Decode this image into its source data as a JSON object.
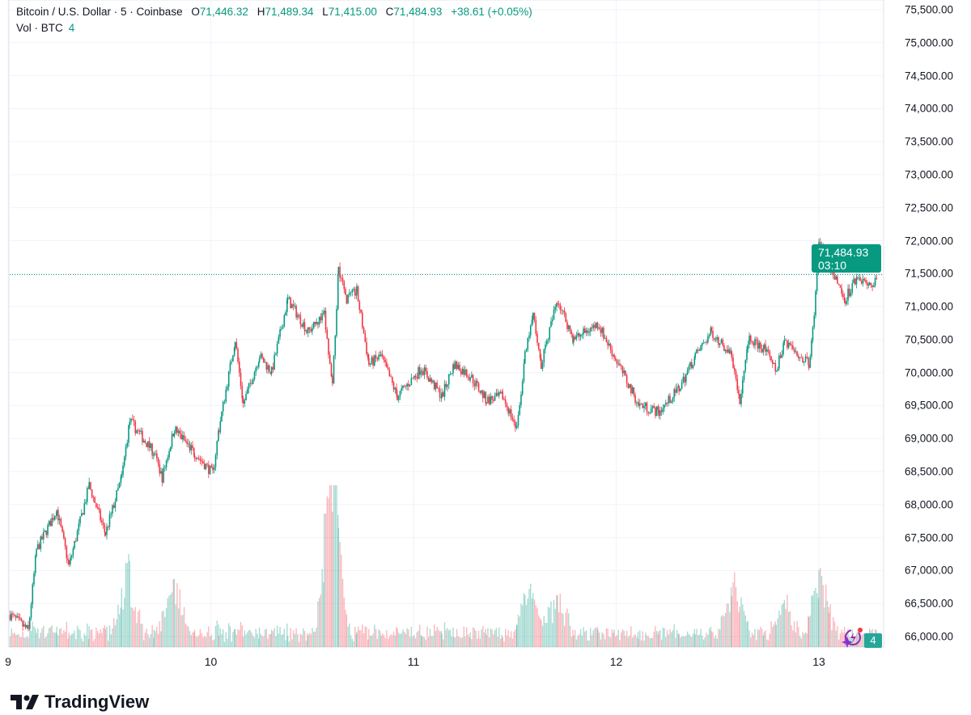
{
  "legend": {
    "symbol": "Bitcoin / U.S. Dollar · 5 · Coinbase",
    "open_label": "O",
    "open": "71,446.32",
    "high_label": "H",
    "high": "71,489.34",
    "low_label": "L",
    "low": "71,415.00",
    "close_label": "C",
    "close": "71,484.93",
    "change": "+38.61 (+0.05%)",
    "vol_label": "Vol · BTC",
    "vol_value": "4"
  },
  "price_label": {
    "price": "71,484.93",
    "countdown": "03:10"
  },
  "volume_label": "4",
  "brand": "TradingView",
  "colors": {
    "up": "#089981",
    "down": "#f23645",
    "grid": "#f0f3fa",
    "price_line": "#089981"
  },
  "chart_data": {
    "type": "candlestick",
    "interval": "5",
    "ylim": [
      65800,
      75700
    ],
    "y_ticks": [
      "75,500.00",
      "75,000.00",
      "74,500.00",
      "74,000.00",
      "73,500.00",
      "73,000.00",
      "72,500.00",
      "72,000.00",
      "71,500.00",
      "71,000.00",
      "70,500.00",
      "70,000.00",
      "69,500.00",
      "69,000.00",
      "68,500.00",
      "68,000.00",
      "67,500.00",
      "67,000.00",
      "66,500.00",
      "66,000.00"
    ],
    "y_tick_values": [
      75500,
      75000,
      74500,
      74000,
      73500,
      73000,
      72500,
      72000,
      71500,
      71000,
      70500,
      70000,
      69500,
      69000,
      68500,
      68000,
      67500,
      67000,
      66500,
      66000
    ],
    "x_ticks": [
      "9",
      "10",
      "11",
      "12",
      "13"
    ],
    "x_tick_values": [
      9,
      10,
      11,
      12,
      13
    ],
    "grid": true,
    "last_price": 71484.93,
    "price_path": [
      [
        9.01,
        66330
      ],
      [
        9.1,
        66090
      ],
      [
        9.14,
        67310
      ],
      [
        9.24,
        67920
      ],
      [
        9.3,
        67070
      ],
      [
        9.4,
        68290
      ],
      [
        9.48,
        67560
      ],
      [
        9.56,
        68410
      ],
      [
        9.6,
        69270
      ],
      [
        9.72,
        68780
      ],
      [
        9.76,
        68410
      ],
      [
        9.82,
        69150
      ],
      [
        9.92,
        68780
      ],
      [
        10.01,
        68470
      ],
      [
        10.04,
        69150
      ],
      [
        10.12,
        70500
      ],
      [
        10.16,
        69520
      ],
      [
        10.24,
        70250
      ],
      [
        10.3,
        70010
      ],
      [
        10.38,
        71110
      ],
      [
        10.48,
        70620
      ],
      [
        10.56,
        70870
      ],
      [
        10.6,
        69760
      ],
      [
        10.63,
        71600
      ],
      [
        10.67,
        71110
      ],
      [
        10.72,
        71230
      ],
      [
        10.78,
        70130
      ],
      [
        10.84,
        70250
      ],
      [
        10.92,
        69640
      ],
      [
        11.04,
        70070
      ],
      [
        11.14,
        69640
      ],
      [
        11.2,
        70130
      ],
      [
        11.28,
        69950
      ],
      [
        11.36,
        69580
      ],
      [
        11.44,
        69640
      ],
      [
        11.51,
        69150
      ],
      [
        11.55,
        70250
      ],
      [
        11.59,
        70870
      ],
      [
        11.63,
        70130
      ],
      [
        11.71,
        71110
      ],
      [
        11.79,
        70500
      ],
      [
        11.91,
        70740
      ],
      [
        11.99,
        70250
      ],
      [
        12.11,
        69520
      ],
      [
        12.21,
        69400
      ],
      [
        12.31,
        69760
      ],
      [
        12.39,
        70250
      ],
      [
        12.47,
        70620
      ],
      [
        12.57,
        70250
      ],
      [
        12.61,
        69520
      ],
      [
        12.65,
        70500
      ],
      [
        12.73,
        70370
      ],
      [
        12.79,
        70010
      ],
      [
        12.83,
        70500
      ],
      [
        12.95,
        70130
      ],
      [
        12.97,
        70620
      ],
      [
        13.0,
        71970
      ],
      [
        13.05,
        71600
      ],
      [
        13.13,
        71110
      ],
      [
        13.19,
        71480
      ],
      [
        13.25,
        71290
      ],
      [
        13.29,
        71485
      ]
    ],
    "volume_spikes": [
      [
        9.59,
        0.52
      ],
      [
        9.82,
        0.42
      ],
      [
        10.59,
        1.0
      ],
      [
        10.61,
        0.45
      ],
      [
        11.57,
        0.3
      ],
      [
        11.71,
        0.32
      ],
      [
        12.58,
        0.4
      ],
      [
        12.83,
        0.27
      ],
      [
        13.01,
        0.44
      ]
    ]
  }
}
